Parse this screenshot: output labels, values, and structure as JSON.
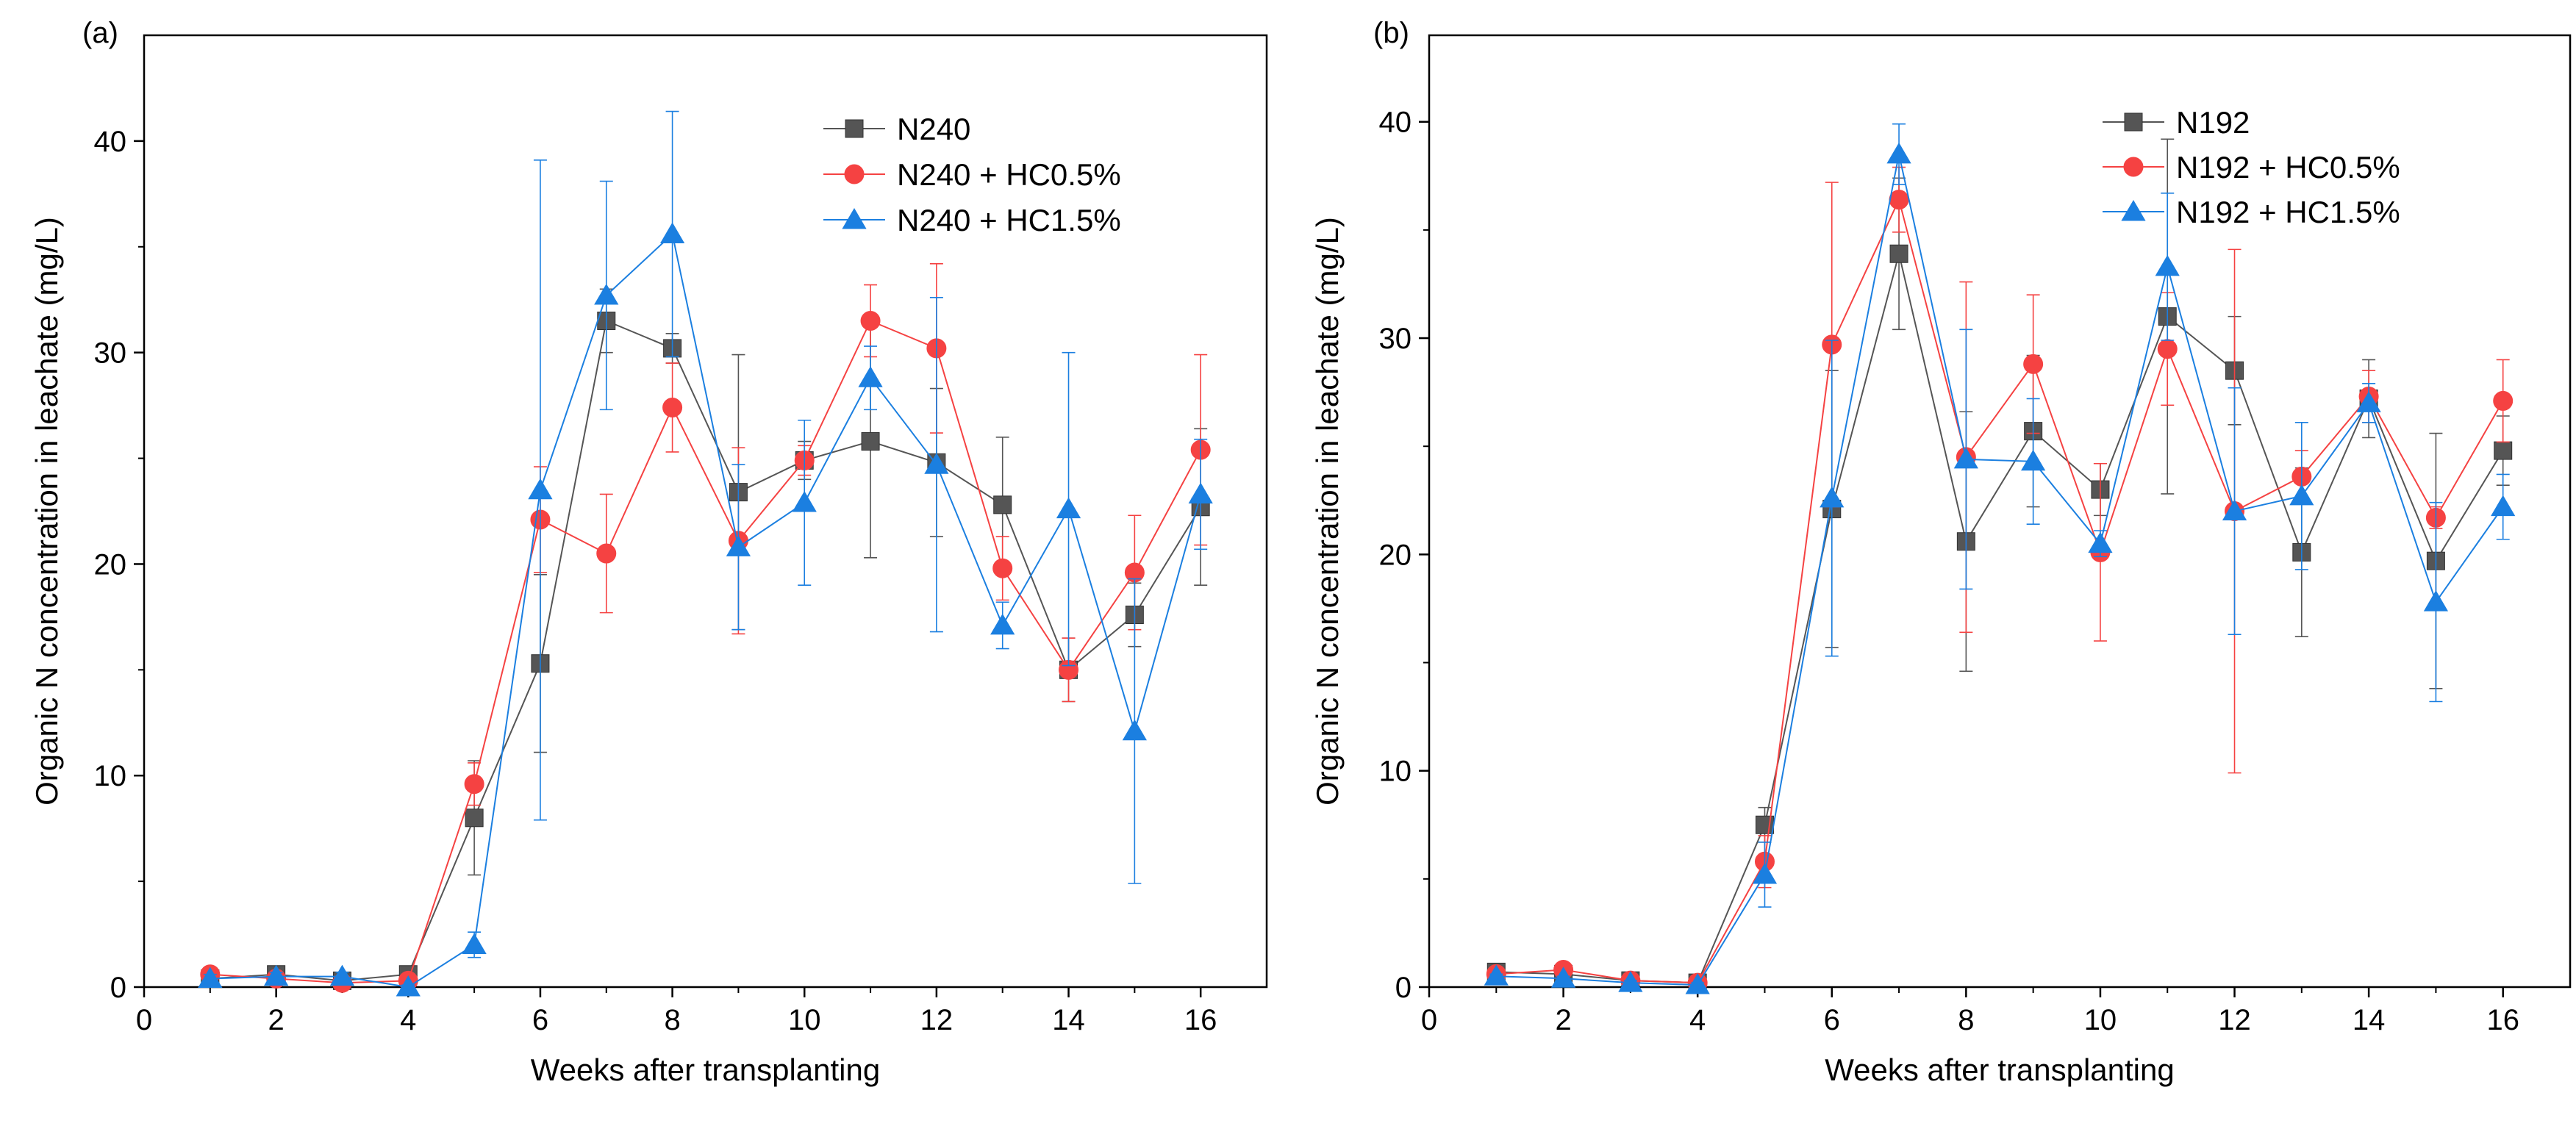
{
  "colors": {
    "series_1": "#555555",
    "series_2": "#f54242",
    "series_3": "#1b7fe0"
  },
  "chart_data": [
    {
      "type": "line",
      "panel_label": "(a)",
      "xlabel": "Weeks after transplanting",
      "ylabel": "Organic N concentration in leachate (mg/L)",
      "xlim": [
        0,
        17
      ],
      "ylim": [
        0,
        45
      ],
      "x_ticks": [
        0,
        2,
        4,
        6,
        8,
        10,
        12,
        14,
        16
      ],
      "y_ticks": [
        0,
        10,
        20,
        30,
        40
      ],
      "legend_position": "top-right",
      "x": [
        1,
        2,
        3,
        4,
        5,
        6,
        7,
        8,
        9,
        10,
        11,
        12,
        13,
        14,
        15,
        16
      ],
      "series": [
        {
          "name": "N240",
          "marker": "square",
          "color": "#555555",
          "values": [
            0.4,
            0.6,
            0.3,
            0.6,
            8.0,
            15.3,
            31.5,
            30.2,
            23.4,
            24.9,
            25.8,
            24.8,
            22.8,
            15.0,
            17.6,
            22.7
          ],
          "errors": [
            0.3,
            0.2,
            0.2,
            0.2,
            2.7,
            4.2,
            1.5,
            0.7,
            6.5,
            0.9,
            5.5,
            3.5,
            3.2,
            1.5,
            1.5,
            3.7
          ]
        },
        {
          "name": "N240 + HC0.5%",
          "marker": "circle",
          "color": "#f54242",
          "values": [
            0.6,
            0.4,
            0.2,
            0.3,
            9.6,
            22.1,
            20.5,
            27.4,
            21.1,
            24.9,
            31.5,
            30.2,
            19.8,
            15.0,
            19.6,
            25.4
          ],
          "errors": [
            0.3,
            0.2,
            0.2,
            0.2,
            1.0,
            2.5,
            2.8,
            2.1,
            4.4,
            0.7,
            1.7,
            4.0,
            1.5,
            1.5,
            2.7,
            4.5
          ]
        },
        {
          "name": "N240 + HC1.5%",
          "marker": "triangle",
          "color": "#1b7fe0",
          "values": [
            0.4,
            0.5,
            0.5,
            0.0,
            2.0,
            23.5,
            32.7,
            35.6,
            20.8,
            22.9,
            28.8,
            24.7,
            17.1,
            22.6,
            12.1,
            23.3
          ],
          "errors": [
            0.2,
            0.2,
            0.2,
            0.1,
            0.6,
            15.6,
            5.4,
            5.8,
            3.9,
            3.9,
            1.5,
            7.9,
            1.1,
            7.4,
            7.2,
            2.6
          ]
        }
      ]
    },
    {
      "type": "line",
      "panel_label": "(b)",
      "xlabel": "Weeks after transplanting",
      "ylabel": "Organic N concentration in leachate (mg/L)",
      "xlim": [
        0,
        17
      ],
      "ylim": [
        0,
        44
      ],
      "x_ticks": [
        0,
        2,
        4,
        6,
        8,
        10,
        12,
        14,
        16
      ],
      "y_ticks": [
        0,
        10,
        20,
        30,
        40
      ],
      "legend_position": "top-right",
      "x": [
        1,
        2,
        3,
        4,
        5,
        6,
        7,
        8,
        9,
        10,
        11,
        12,
        13,
        14,
        15,
        16
      ],
      "series": [
        {
          "name": "N192",
          "marker": "square",
          "color": "#555555",
          "values": [
            0.7,
            0.6,
            0.3,
            0.2,
            7.5,
            22.1,
            33.9,
            20.6,
            25.7,
            23.0,
            31.0,
            28.5,
            20.1,
            27.2,
            19.7,
            24.8
          ],
          "errors": [
            0.1,
            0.1,
            0.1,
            0.1,
            0.8,
            6.4,
            3.5,
            6.0,
            3.5,
            1.2,
            8.2,
            2.5,
            3.9,
            1.8,
            5.9,
            1.6
          ]
        },
        {
          "name": "N192 + HC0.5%",
          "marker": "circle",
          "color": "#f54242",
          "values": [
            0.6,
            0.8,
            0.3,
            0.2,
            5.8,
            29.7,
            36.4,
            24.5,
            28.8,
            20.1,
            29.5,
            22.0,
            23.6,
            27.3,
            21.7,
            27.1
          ],
          "errors": [
            0.1,
            0.1,
            0.1,
            0.1,
            1.2,
            7.5,
            1.5,
            8.1,
            3.2,
            4.1,
            2.6,
            12.1,
            1.2,
            1.2,
            0.5,
            1.9
          ]
        },
        {
          "name": "N192 + HC1.5%",
          "marker": "triangle",
          "color": "#1b7fe0",
          "values": [
            0.5,
            0.4,
            0.2,
            0.1,
            5.2,
            22.6,
            38.5,
            24.4,
            24.3,
            20.5,
            33.3,
            22.0,
            22.7,
            27.0,
            17.8,
            22.2
          ],
          "errors": [
            0.1,
            0.1,
            0.1,
            0.1,
            1.5,
            7.3,
            1.4,
            6.0,
            2.9,
            0.6,
            3.4,
            5.7,
            3.4,
            0.9,
            4.6,
            1.5
          ]
        }
      ]
    }
  ]
}
